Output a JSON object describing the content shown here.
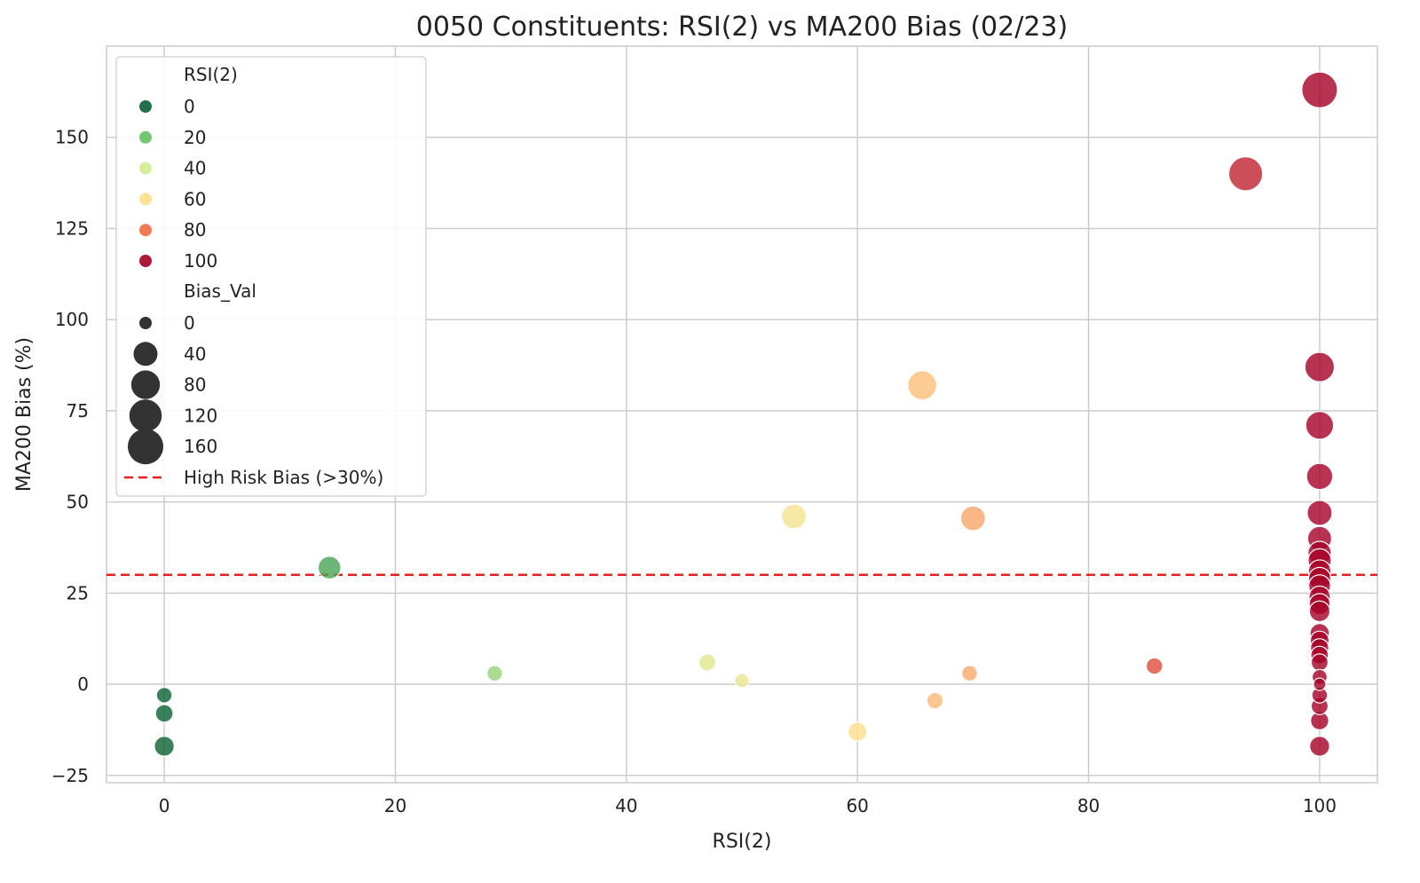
{
  "chart_data": {
    "type": "scatter",
    "title": "0050 Constituents: RSI(2) vs MA200 Bias (02/23)",
    "xlabel": "RSI(2)",
    "ylabel": "MA200 Bias (%)",
    "xlim": [
      -5,
      105
    ],
    "ylim": [
      -27,
      175
    ],
    "x_ticks": [
      0,
      20,
      40,
      60,
      80,
      100
    ],
    "y_ticks": [
      -25,
      0,
      25,
      50,
      75,
      100,
      125,
      150
    ],
    "x_tick_labels": [
      "0",
      "20",
      "40",
      "60",
      "80",
      "100"
    ],
    "y_tick_labels": [
      "−25",
      "0",
      "25",
      "50",
      "75",
      "100",
      "125",
      "150"
    ],
    "grid": true,
    "hue_variable": "RSI(2)",
    "size_variable": "Bias_Val",
    "colormap": "RdYlGn_r",
    "points": [
      {
        "x": 0,
        "y": -3
      },
      {
        "x": 0,
        "y": -8
      },
      {
        "x": 0,
        "y": -17
      },
      {
        "x": 14.3,
        "y": 32
      },
      {
        "x": 28.6,
        "y": 3
      },
      {
        "x": 47,
        "y": 6
      },
      {
        "x": 50,
        "y": 1
      },
      {
        "x": 54.5,
        "y": 46
      },
      {
        "x": 60,
        "y": -13
      },
      {
        "x": 65.6,
        "y": 82
      },
      {
        "x": 66.7,
        "y": -4.5
      },
      {
        "x": 69.7,
        "y": 3
      },
      {
        "x": 70,
        "y": 45.5
      },
      {
        "x": 85.7,
        "y": 5
      },
      {
        "x": 93.6,
        "y": 140
      },
      {
        "x": 100,
        "y": 163
      },
      {
        "x": 100,
        "y": 87
      },
      {
        "x": 100,
        "y": 71
      },
      {
        "x": 100,
        "y": 57
      },
      {
        "x": 100,
        "y": 47
      },
      {
        "x": 100,
        "y": 40
      },
      {
        "x": 100,
        "y": 36
      },
      {
        "x": 100,
        "y": 34
      },
      {
        "x": 100,
        "y": 31
      },
      {
        "x": 100,
        "y": 29
      },
      {
        "x": 100,
        "y": 27
      },
      {
        "x": 100,
        "y": 24
      },
      {
        "x": 100,
        "y": 22
      },
      {
        "x": 100,
        "y": 20
      },
      {
        "x": 100,
        "y": 14
      },
      {
        "x": 100,
        "y": 12
      },
      {
        "x": 100,
        "y": 10
      },
      {
        "x": 100,
        "y": 8
      },
      {
        "x": 100,
        "y": 6
      },
      {
        "x": 100,
        "y": 2
      },
      {
        "x": 100,
        "y": 0
      },
      {
        "x": 100,
        "y": -3
      },
      {
        "x": 100,
        "y": -6
      },
      {
        "x": 100,
        "y": -10
      },
      {
        "x": 100,
        "y": -17
      }
    ],
    "reference_line": {
      "y": 30,
      "label": "High Risk Bias (>30%)",
      "color": "#e8211a",
      "style": "dashed"
    },
    "legend": {
      "placement": "top-left",
      "hue_title": "RSI(2)",
      "hue_entries": [
        {
          "label": "0",
          "value": 0,
          "color": "#0a6133"
        },
        {
          "label": "20",
          "value": 20,
          "color": "#64bf63"
        },
        {
          "label": "40",
          "value": 40,
          "color": "#d2ec8f"
        },
        {
          "label": "60",
          "value": 60,
          "color": "#fedf8d"
        },
        {
          "label": "80",
          "value": 80,
          "color": "#f36b42"
        },
        {
          "label": "100",
          "value": 100,
          "color": "#a50026"
        }
      ],
      "size_title": "Bias_Val",
      "size_entries": [
        {
          "label": "0",
          "value": 0
        },
        {
          "label": "40",
          "value": 40
        },
        {
          "label": "80",
          "value": 80
        },
        {
          "label": "120",
          "value": 120
        },
        {
          "label": "160",
          "value": 160
        }
      ],
      "size_marker_color": "#333333",
      "line_label": "High Risk Bias (>30%)"
    }
  }
}
